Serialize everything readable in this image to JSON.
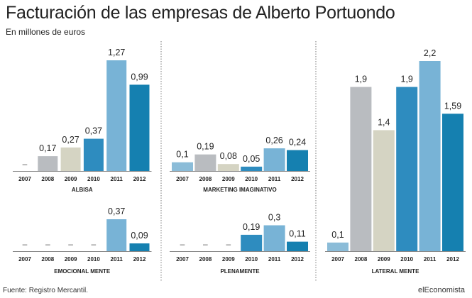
{
  "title": "Facturación de las empresas de Alberto Portuondo",
  "subtitle": "En millones de euros",
  "source": "Fuente: Registro Mercantil.",
  "brand": "elEconomista",
  "colors": {
    "2007": "#8bbcd8",
    "2008": "#b9bcc0",
    "2009": "#d5d4c3",
    "2010": "#2e8cbf",
    "2011": "#78b3d6",
    "2012": "#1580b0",
    "axis": "#888888",
    "divider": "#777777"
  },
  "chart_data": [
    {
      "type": "bar",
      "title": "ALBISA",
      "categories": [
        "2007",
        "2008",
        "2009",
        "2010",
        "2011",
        "2012"
      ],
      "values": [
        null,
        0.17,
        0.27,
        0.37,
        1.27,
        0.99
      ],
      "labels": [
        "–",
        "0,17",
        "0,27",
        "0,37",
        "1,27",
        "0,99"
      ],
      "ylim": [
        0,
        1.27
      ]
    },
    {
      "type": "bar",
      "title": "MARKETING IMAGINATIVO",
      "categories": [
        "2007",
        "2008",
        "2009",
        "2010",
        "2011",
        "2012"
      ],
      "values": [
        0.1,
        0.19,
        0.08,
        0.05,
        0.26,
        0.24
      ],
      "labels": [
        "0,1",
        "0,19",
        "0,08",
        "0,05",
        "0,26",
        "0,24"
      ],
      "ylim": [
        0,
        1.27
      ]
    },
    {
      "type": "bar",
      "title": "EMOCIONAL MENTE",
      "categories": [
        "2007",
        "2008",
        "2009",
        "2010",
        "2011",
        "2012"
      ],
      "values": [
        null,
        null,
        null,
        null,
        0.37,
        0.09
      ],
      "labels": [
        "–",
        "–",
        "–",
        "–",
        "0,37",
        "0,09"
      ],
      "ylim": [
        0,
        0.37
      ]
    },
    {
      "type": "bar",
      "title": "PLENAMENTE",
      "categories": [
        "2007",
        "2008",
        "2009",
        "2010",
        "2011",
        "2012"
      ],
      "values": [
        null,
        null,
        null,
        0.19,
        0.3,
        0.11
      ],
      "labels": [
        "–",
        "–",
        "–",
        "0,19",
        "0,3",
        "0,11"
      ],
      "ylim": [
        0,
        0.37
      ]
    },
    {
      "type": "bar",
      "title": "LATERAL MENTE",
      "categories": [
        "2007",
        "2008",
        "2009",
        "2010",
        "2011",
        "2012"
      ],
      "values": [
        0.1,
        1.9,
        1.4,
        1.9,
        2.2,
        1.59
      ],
      "labels": [
        "0,1",
        "1,9",
        "1,4",
        "1,9",
        "2,2",
        "1,59"
      ],
      "ylim": [
        0,
        2.2
      ]
    }
  ]
}
